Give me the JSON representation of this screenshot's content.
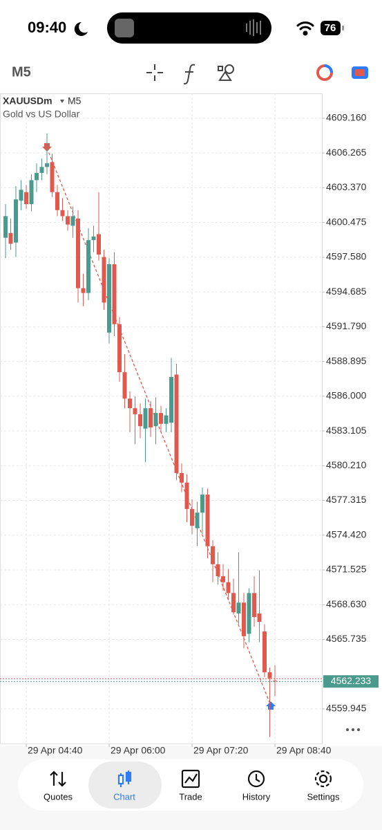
{
  "status_bar": {
    "time": "09:40",
    "battery": "76"
  },
  "toolbar": {
    "timeframe": "M5"
  },
  "chart_data": {
    "type": "candlestick",
    "symbol": "XAUUSDm",
    "timeframe": "M5",
    "description": "Gold vs US Dollar",
    "categories": [
      null,
      null,
      null,
      null,
      "29 Apr 04:40",
      null,
      null,
      null,
      null,
      null,
      null,
      null,
      null,
      null,
      null,
      null,
      null,
      null,
      null,
      null,
      "29 Apr 06:00",
      null,
      null,
      null,
      null,
      null,
      null,
      null,
      null,
      null,
      null,
      null,
      null,
      null,
      null,
      null,
      "29 Apr 07:20",
      null,
      null,
      null,
      null,
      null,
      null,
      null,
      null,
      null,
      null,
      null,
      null,
      null,
      null,
      null,
      "29 Apr 08:40"
    ],
    "open": [
      4599.2,
      4599.6,
      4598.8,
      4602.3,
      4603.0,
      4602.0,
      4604.0,
      4604.6,
      4605.1,
      4605.5,
      4603.0,
      4601.5,
      4601.0,
      4600.2,
      4600.8,
      4595.0,
      4594.6,
      4599.0,
      4599.5,
      4597.6,
      4591.3,
      4597.0,
      4592.0,
      4588.0,
      4585.8,
      4585.0,
      4584.5,
      4583.3,
      4585.0,
      4583.5,
      4584.6,
      4583.7,
      4583.8,
      4587.8,
      4579.6,
      4578.8,
      4576.6,
      4575.0,
      4576.3,
      4577.8,
      4573.5,
      4572.0,
      4571.0,
      4570.5,
      4569.6,
      4567.9,
      4568.8,
      4566.2,
      4569.6,
      4567.9,
      4566.4,
      4563.0,
      4562.3
    ],
    "high": [
      4602.0,
      4600.8,
      4603.5,
      4604.0,
      4603.6,
      4604.5,
      4605.4,
      4605.8,
      4607.9,
      4606.2,
      4603.6,
      4602.5,
      4601.5,
      4601.8,
      4601.5,
      4596.2,
      4600.0,
      4600.2,
      4603.0,
      4598.2,
      4597.5,
      4598.0,
      4592.6,
      4589.5,
      4586.4,
      4586.0,
      4585.4,
      4585.8,
      4585.6,
      4585.9,
      4585.2,
      4585.0,
      4589.2,
      4588.7,
      4580.4,
      4579.5,
      4577.4,
      4577.2,
      4578.4,
      4578.3,
      4574.0,
      4573.0,
      4572.0,
      4571.6,
      4570.8,
      4573.0,
      4569.6,
      4570.0,
      4571.0,
      4571.5,
      4567.0,
      4563.4,
      4563.6
    ],
    "low": [
      4597.5,
      4598.2,
      4597.6,
      4601.5,
      4601.6,
      4601.4,
      4603.0,
      4604.0,
      4604.5,
      4602.6,
      4601.0,
      4600.6,
      4599.8,
      4599.2,
      4593.8,
      4593.5,
      4594.0,
      4598.0,
      4597.3,
      4593.2,
      4590.4,
      4591.0,
      4587.2,
      4585.0,
      4583.0,
      4582.0,
      4582.5,
      4580.5,
      4582.6,
      4582.0,
      4583.0,
      4583.0,
      4583.0,
      4579.0,
      4578.0,
      4575.5,
      4574.5,
      4573.5,
      4574.5,
      4572.5,
      4570.5,
      4570.3,
      4569.8,
      4569.0,
      4567.8,
      4567.0,
      4565.0,
      4565.5,
      4566.8,
      4565.5,
      4562.6,
      4557.6,
      4561.0
    ],
    "close": [
      4601.0,
      4598.7,
      4602.4,
      4603.2,
      4602.0,
      4604.0,
      4604.6,
      4605.1,
      4605.4,
      4603.0,
      4601.5,
      4601.0,
      4600.3,
      4601.0,
      4595.0,
      4594.6,
      4599.0,
      4599.3,
      4597.8,
      4593.8,
      4597.0,
      4592.0,
      4588.0,
      4585.8,
      4585.0,
      4584.5,
      4583.5,
      4585.0,
      4583.4,
      4584.6,
      4583.7,
      4584.4,
      4587.6,
      4579.6,
      4578.8,
      4576.6,
      4575.2,
      4576.3,
      4577.8,
      4573.5,
      4572.0,
      4571.0,
      4570.5,
      4569.6,
      4568.0,
      4568.8,
      4566.0,
      4569.6,
      4567.6,
      4567.2,
      4563.0,
      4562.5,
      4562.233
    ],
    "up_color": "#4a9b8e",
    "down_color": "#e0594f",
    "ylim": [
      4557.06,
      4611.23
    ],
    "yticks": [
      {
        "value": 4609.16,
        "label": "4609.160"
      },
      4606.265,
      {
        "value": 4603.37,
        "label": "4603.370"
      },
      4600.475,
      {
        "value": 4597.58,
        "label": "4597.580"
      },
      4594.685,
      {
        "value": 4591.79,
        "label": "4591.790"
      },
      4588.895,
      {
        "value": 4586,
        "label": "4586.000"
      },
      4583.105,
      {
        "value": 4580.21,
        "label": "4580.210"
      },
      4577.315,
      {
        "value": 4574.42,
        "label": "4574.420"
      },
      4571.525,
      {
        "value": 4568.63,
        "label": "4568.630"
      },
      4565.735,
      4559.945
    ],
    "last_price": 4562.233,
    "grid": true
  },
  "tab_bar": {
    "tabs": [
      "Quotes",
      "Chart",
      "Trade",
      "History",
      "Settings"
    ],
    "active_index": 1
  }
}
